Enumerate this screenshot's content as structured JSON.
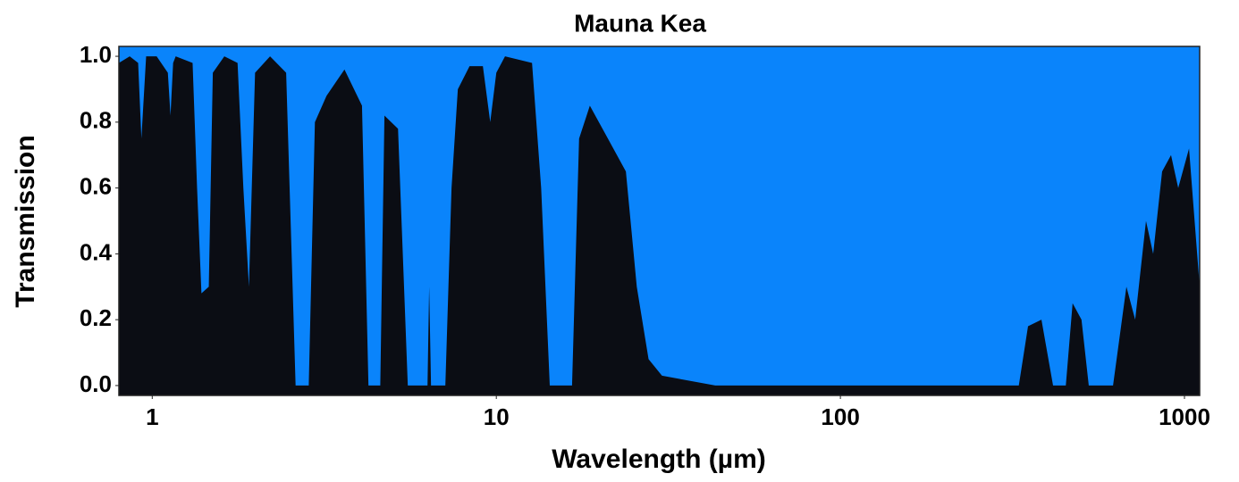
{
  "chart_data": {
    "type": "area",
    "title": "Mauna Kea",
    "x_label": "Wavelength (µm)",
    "y_label": "Transmission",
    "x_scale": "log",
    "grid": false,
    "color": "#0b0d14",
    "background_color": "#0a84fb",
    "xlim": [
      0.8,
      1107
    ],
    "ylim": [
      -0.03,
      1.03
    ],
    "xticks": [
      1,
      10,
      100,
      1000
    ],
    "yticks": [
      {
        "value": 0,
        "label": "0.0"
      },
      0.2,
      0.4,
      0.6,
      0.8,
      {
        "value": 1,
        "label": "1.0"
      }
    ],
    "x": [
      0.8,
      0.86,
      0.91,
      0.93,
      0.96,
      1.03,
      1.11,
      1.13,
      1.15,
      1.17,
      1.31,
      1.35,
      1.39,
      1.46,
      1.5,
      1.62,
      1.77,
      1.84,
      1.91,
      1.99,
      2.2,
      2.45,
      2.61,
      2.85,
      2.97,
      3.21,
      3.62,
      4.07,
      4.25,
      4.6,
      4.73,
      5.18,
      5.53,
      6.31,
      6.38,
      6.46,
      7.11,
      7.41,
      7.73,
      8.36,
      9.14,
      9.6,
      10.0,
      10.6,
      12.7,
      13.5,
      14.3,
      16.6,
      17.4,
      18.7,
      21.1,
      23.8,
      25.6,
      27.7,
      30.3,
      34.1,
      43.3,
      330,
      351,
      384,
      415,
      452,
      473,
      502,
      527,
      620,
      678,
      719,
      773,
      811,
      861,
      914,
      959,
      1031,
      1107
    ],
    "values": [
      0.98,
      1.0,
      0.98,
      0.75,
      1.0,
      1.0,
      0.95,
      0.82,
      0.98,
      1.0,
      0.98,
      0.6,
      0.28,
      0.3,
      0.95,
      1.0,
      0.98,
      0.6,
      0.3,
      0.95,
      1.0,
      0.95,
      0.0,
      0.0,
      0.8,
      0.88,
      0.96,
      0.85,
      0.0,
      0.0,
      0.82,
      0.78,
      0.0,
      0.0,
      0.3,
      0.0,
      0.0,
      0.6,
      0.9,
      0.97,
      0.97,
      0.8,
      0.95,
      1.0,
      0.98,
      0.6,
      0.0,
      0.0,
      0.75,
      0.85,
      0.75,
      0.65,
      0.3,
      0.08,
      0.03,
      0.02,
      0.0,
      0.0,
      0.18,
      0.2,
      0.0,
      0.0,
      0.25,
      0.2,
      0.0,
      0.0,
      0.3,
      0.2,
      0.5,
      0.4,
      0.65,
      0.7,
      0.6,
      0.72,
      0.3
    ]
  }
}
